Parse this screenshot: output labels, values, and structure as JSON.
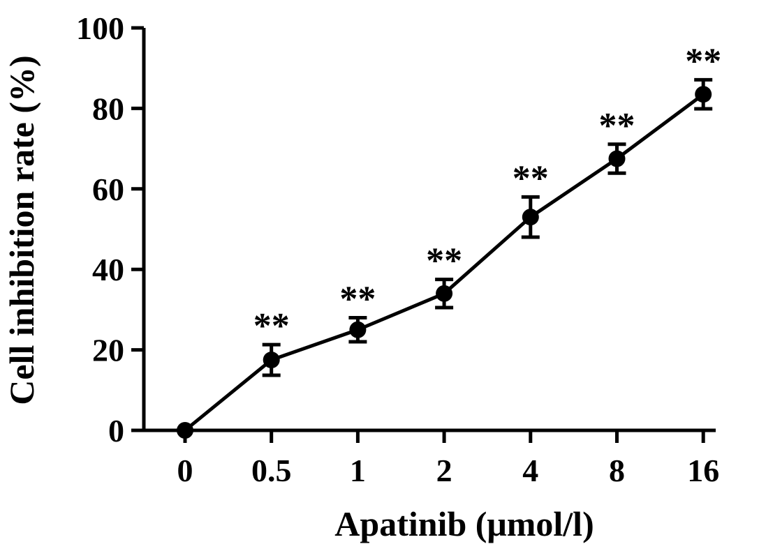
{
  "chart_data": {
    "type": "line",
    "title": "",
    "xlabel": "Apatinib (μmol/l)",
    "ylabel": "Cell inhibition rate (%)",
    "ylim": [
      0,
      100
    ],
    "yticks": [
      "0",
      "20",
      "40",
      "60",
      "80",
      "100"
    ],
    "categories": [
      "0",
      "0.5",
      "1",
      "2",
      "4",
      "8",
      "16"
    ],
    "series": [
      {
        "values": [
          0,
          17.5,
          25,
          34,
          53,
          67.5,
          83.5
        ],
        "error": [
          0,
          3.8,
          3,
          3.5,
          5,
          3.6,
          3.6
        ],
        "annotations": [
          "",
          "**",
          "**",
          "**",
          "**",
          "**",
          "**"
        ]
      }
    ],
    "grid": false,
    "legend": "none",
    "colors": {
      "line": "#000000",
      "marker": "#000000",
      "axis": "#000000",
      "background": "#ffffff"
    }
  }
}
